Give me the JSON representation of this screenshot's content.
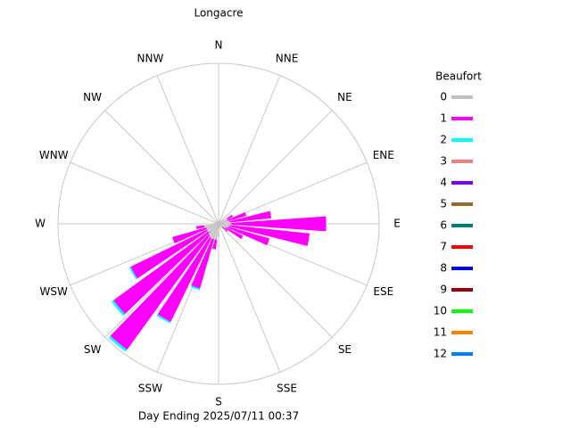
{
  "chart_data": {
    "type": "windrose",
    "title": "Longacre",
    "footer": "Day Ending 2025/07/11 00:37",
    "direction_labels": [
      "N",
      "NNE",
      "NE",
      "ENE",
      "E",
      "ESE",
      "SE",
      "SSE",
      "S",
      "SSW",
      "SW",
      "WSW",
      "W",
      "WNW",
      "NW",
      "NNW"
    ],
    "legend_title": "Beaufort",
    "rlim": [
      0,
      100
    ],
    "directions": [
      0,
      10,
      20,
      30,
      40,
      50,
      60,
      70,
      80,
      90,
      100,
      110,
      120,
      130,
      140,
      150,
      160,
      170,
      180,
      190,
      200,
      210,
      220,
      230,
      240,
      250,
      260,
      270,
      280,
      290,
      300,
      310,
      320,
      330,
      340,
      350
    ],
    "series": [
      {
        "name": "0",
        "color": "#c0c0c0",
        "values": [
          3,
          0,
          0,
          3,
          0,
          4,
          6,
          6,
          7,
          8,
          7,
          6,
          5,
          3,
          2,
          0,
          3,
          3,
          8,
          10,
          10,
          10,
          9,
          8,
          8,
          8,
          9,
          4,
          3,
          2,
          2,
          2,
          0,
          2,
          2,
          2
        ]
      },
      {
        "name": "1",
        "color": "#ff00ff",
        "values": [
          0,
          0,
          0,
          0,
          0,
          0,
          4,
          12,
          26,
          59,
          50,
          27,
          12,
          4,
          0,
          0,
          0,
          0,
          0,
          6,
          32,
          58,
          88,
          73,
          53,
          22,
          5,
          0,
          0,
          0,
          0,
          0,
          0,
          0,
          0,
          0
        ]
      },
      {
        "name": "2",
        "color": "#00ffff",
        "values": [
          0,
          0,
          0,
          0,
          0,
          0,
          0,
          0,
          0,
          0,
          0,
          0,
          0,
          0,
          0,
          0,
          0,
          0,
          0,
          0,
          1,
          1,
          1.5,
          1.5,
          1,
          0,
          0,
          0,
          0,
          0,
          0,
          0,
          0,
          0,
          0,
          0
        ]
      },
      {
        "name": "3",
        "color": "#f08080",
        "values": [
          0,
          0,
          0,
          0,
          0,
          0,
          0,
          0,
          0,
          0,
          0,
          0,
          0,
          0,
          0,
          0,
          0,
          0,
          0,
          0,
          0,
          0,
          0,
          0,
          0,
          0,
          0,
          0,
          0,
          0,
          0,
          0,
          0,
          0,
          0,
          0
        ]
      },
      {
        "name": "4",
        "color": "#8000ff",
        "values": [
          0,
          0,
          0,
          0,
          0,
          0,
          0,
          0,
          0,
          0,
          0,
          0,
          0,
          0,
          0,
          0,
          0,
          0,
          0,
          0,
          0,
          0,
          0,
          0,
          0,
          0,
          0,
          0,
          0,
          0,
          0,
          0,
          0,
          0,
          0,
          0
        ]
      },
      {
        "name": "5",
        "color": "#a0642d",
        "values": [
          0,
          0,
          0,
          0,
          0,
          0,
          0,
          0,
          0,
          0,
          0,
          0,
          0,
          0,
          0,
          0,
          0,
          0,
          0,
          0,
          0,
          0,
          0,
          0,
          0,
          0,
          0,
          0,
          0,
          0,
          0,
          0,
          0,
          0,
          0,
          0
        ]
      },
      {
        "name": "6",
        "color": "#008070",
        "values": [
          0,
          0,
          0,
          0,
          0,
          0,
          0,
          0,
          0,
          0,
          0,
          0,
          0,
          0,
          0,
          0,
          0,
          0,
          0,
          0,
          0,
          0,
          0,
          0,
          0,
          0,
          0,
          0,
          0,
          0,
          0,
          0,
          0,
          0,
          0,
          0
        ]
      },
      {
        "name": "7",
        "color": "#ff0000",
        "values": [
          0,
          0,
          0,
          0,
          0,
          0,
          0,
          0,
          0,
          0,
          0,
          0,
          0,
          0,
          0,
          0,
          0,
          0,
          0,
          0,
          0,
          0,
          0,
          0,
          0,
          0,
          0,
          0,
          0,
          0,
          0,
          0,
          0,
          0,
          0,
          0
        ]
      },
      {
        "name": "8",
        "color": "#0000ff",
        "values": [
          0,
          0,
          0,
          0,
          0,
          0,
          0,
          0,
          0,
          0,
          0,
          0,
          0,
          0,
          0,
          0,
          0,
          0,
          0,
          0,
          0,
          0,
          0,
          0,
          0,
          0,
          0,
          0,
          0,
          0,
          0,
          0,
          0,
          0,
          0,
          0
        ]
      },
      {
        "name": "9",
        "color": "#a00000",
        "values": [
          0,
          0,
          0,
          0,
          0,
          0,
          0,
          0,
          0,
          0,
          0,
          0,
          0,
          0,
          0,
          0,
          0,
          0,
          0,
          0,
          0,
          0,
          0,
          0,
          0,
          0,
          0,
          0,
          0,
          0,
          0,
          0,
          0,
          0,
          0,
          0
        ]
      },
      {
        "name": "10",
        "color": "#00ff00",
        "values": [
          0,
          0,
          0,
          0,
          0,
          0,
          0,
          0,
          0,
          0,
          0,
          0,
          0,
          0,
          0,
          0,
          0,
          0,
          0,
          0,
          0,
          0,
          0,
          0,
          0,
          0,
          0,
          0,
          0,
          0,
          0,
          0,
          0,
          0,
          0,
          0
        ]
      },
      {
        "name": "11",
        "color": "#ff8000",
        "values": [
          0,
          0,
          0,
          0,
          0,
          0,
          0,
          0,
          0,
          0,
          0,
          0,
          0,
          0,
          0,
          0,
          0,
          0,
          0,
          0,
          0,
          0,
          0,
          0,
          0,
          0,
          0,
          0,
          0,
          0,
          0,
          0,
          0,
          0,
          0,
          0
        ]
      },
      {
        "name": "12",
        "color": "#0080ff",
        "values": [
          0,
          0,
          0,
          0,
          0,
          0,
          0,
          0,
          0,
          0,
          0,
          0,
          0,
          0,
          0,
          0,
          0,
          0,
          0,
          0,
          0,
          0,
          0,
          0,
          0,
          0,
          0,
          0,
          0,
          0,
          0,
          0,
          0,
          0,
          0,
          0
        ]
      }
    ]
  }
}
